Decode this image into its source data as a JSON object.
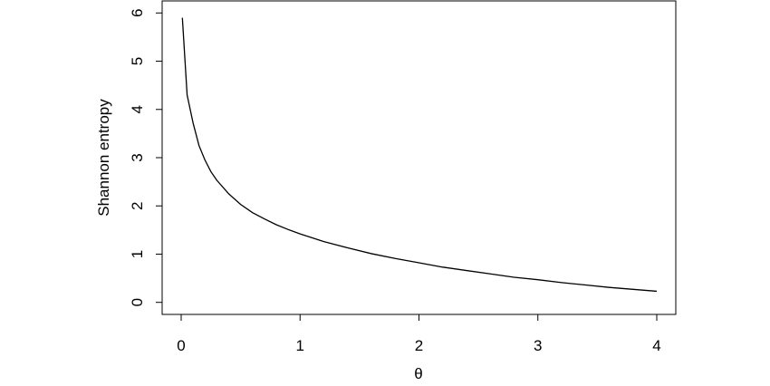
{
  "chart_data": {
    "type": "line",
    "xlabel": "θ",
    "ylabel": "Shannon entropy",
    "xlim": [
      -0.16,
      4.16
    ],
    "ylim": [
      -0.25,
      6.25
    ],
    "x_ticks": [
      0,
      1,
      2,
      3,
      4
    ],
    "y_ticks": [
      0,
      1,
      2,
      3,
      4,
      5,
      6
    ],
    "grid": false,
    "series": [
      {
        "x": [
          0.01,
          0.05,
          0.1,
          0.15,
          0.2,
          0.25,
          0.3,
          0.4,
          0.5,
          0.6,
          0.7,
          0.8,
          0.9,
          1.0,
          1.2,
          1.4,
          1.6,
          1.8,
          2.0,
          2.2,
          2.4,
          2.6,
          2.8,
          3.0,
          3.2,
          3.4,
          3.6,
          3.8,
          4.0
        ],
        "y": [
          5.9,
          4.3,
          3.72,
          3.25,
          2.95,
          2.71,
          2.53,
          2.25,
          2.03,
          1.86,
          1.73,
          1.61,
          1.51,
          1.42,
          1.26,
          1.13,
          1.01,
          0.91,
          0.82,
          0.73,
          0.66,
          0.59,
          0.52,
          0.47,
          0.41,
          0.36,
          0.31,
          0.27,
          0.23
        ]
      }
    ]
  }
}
